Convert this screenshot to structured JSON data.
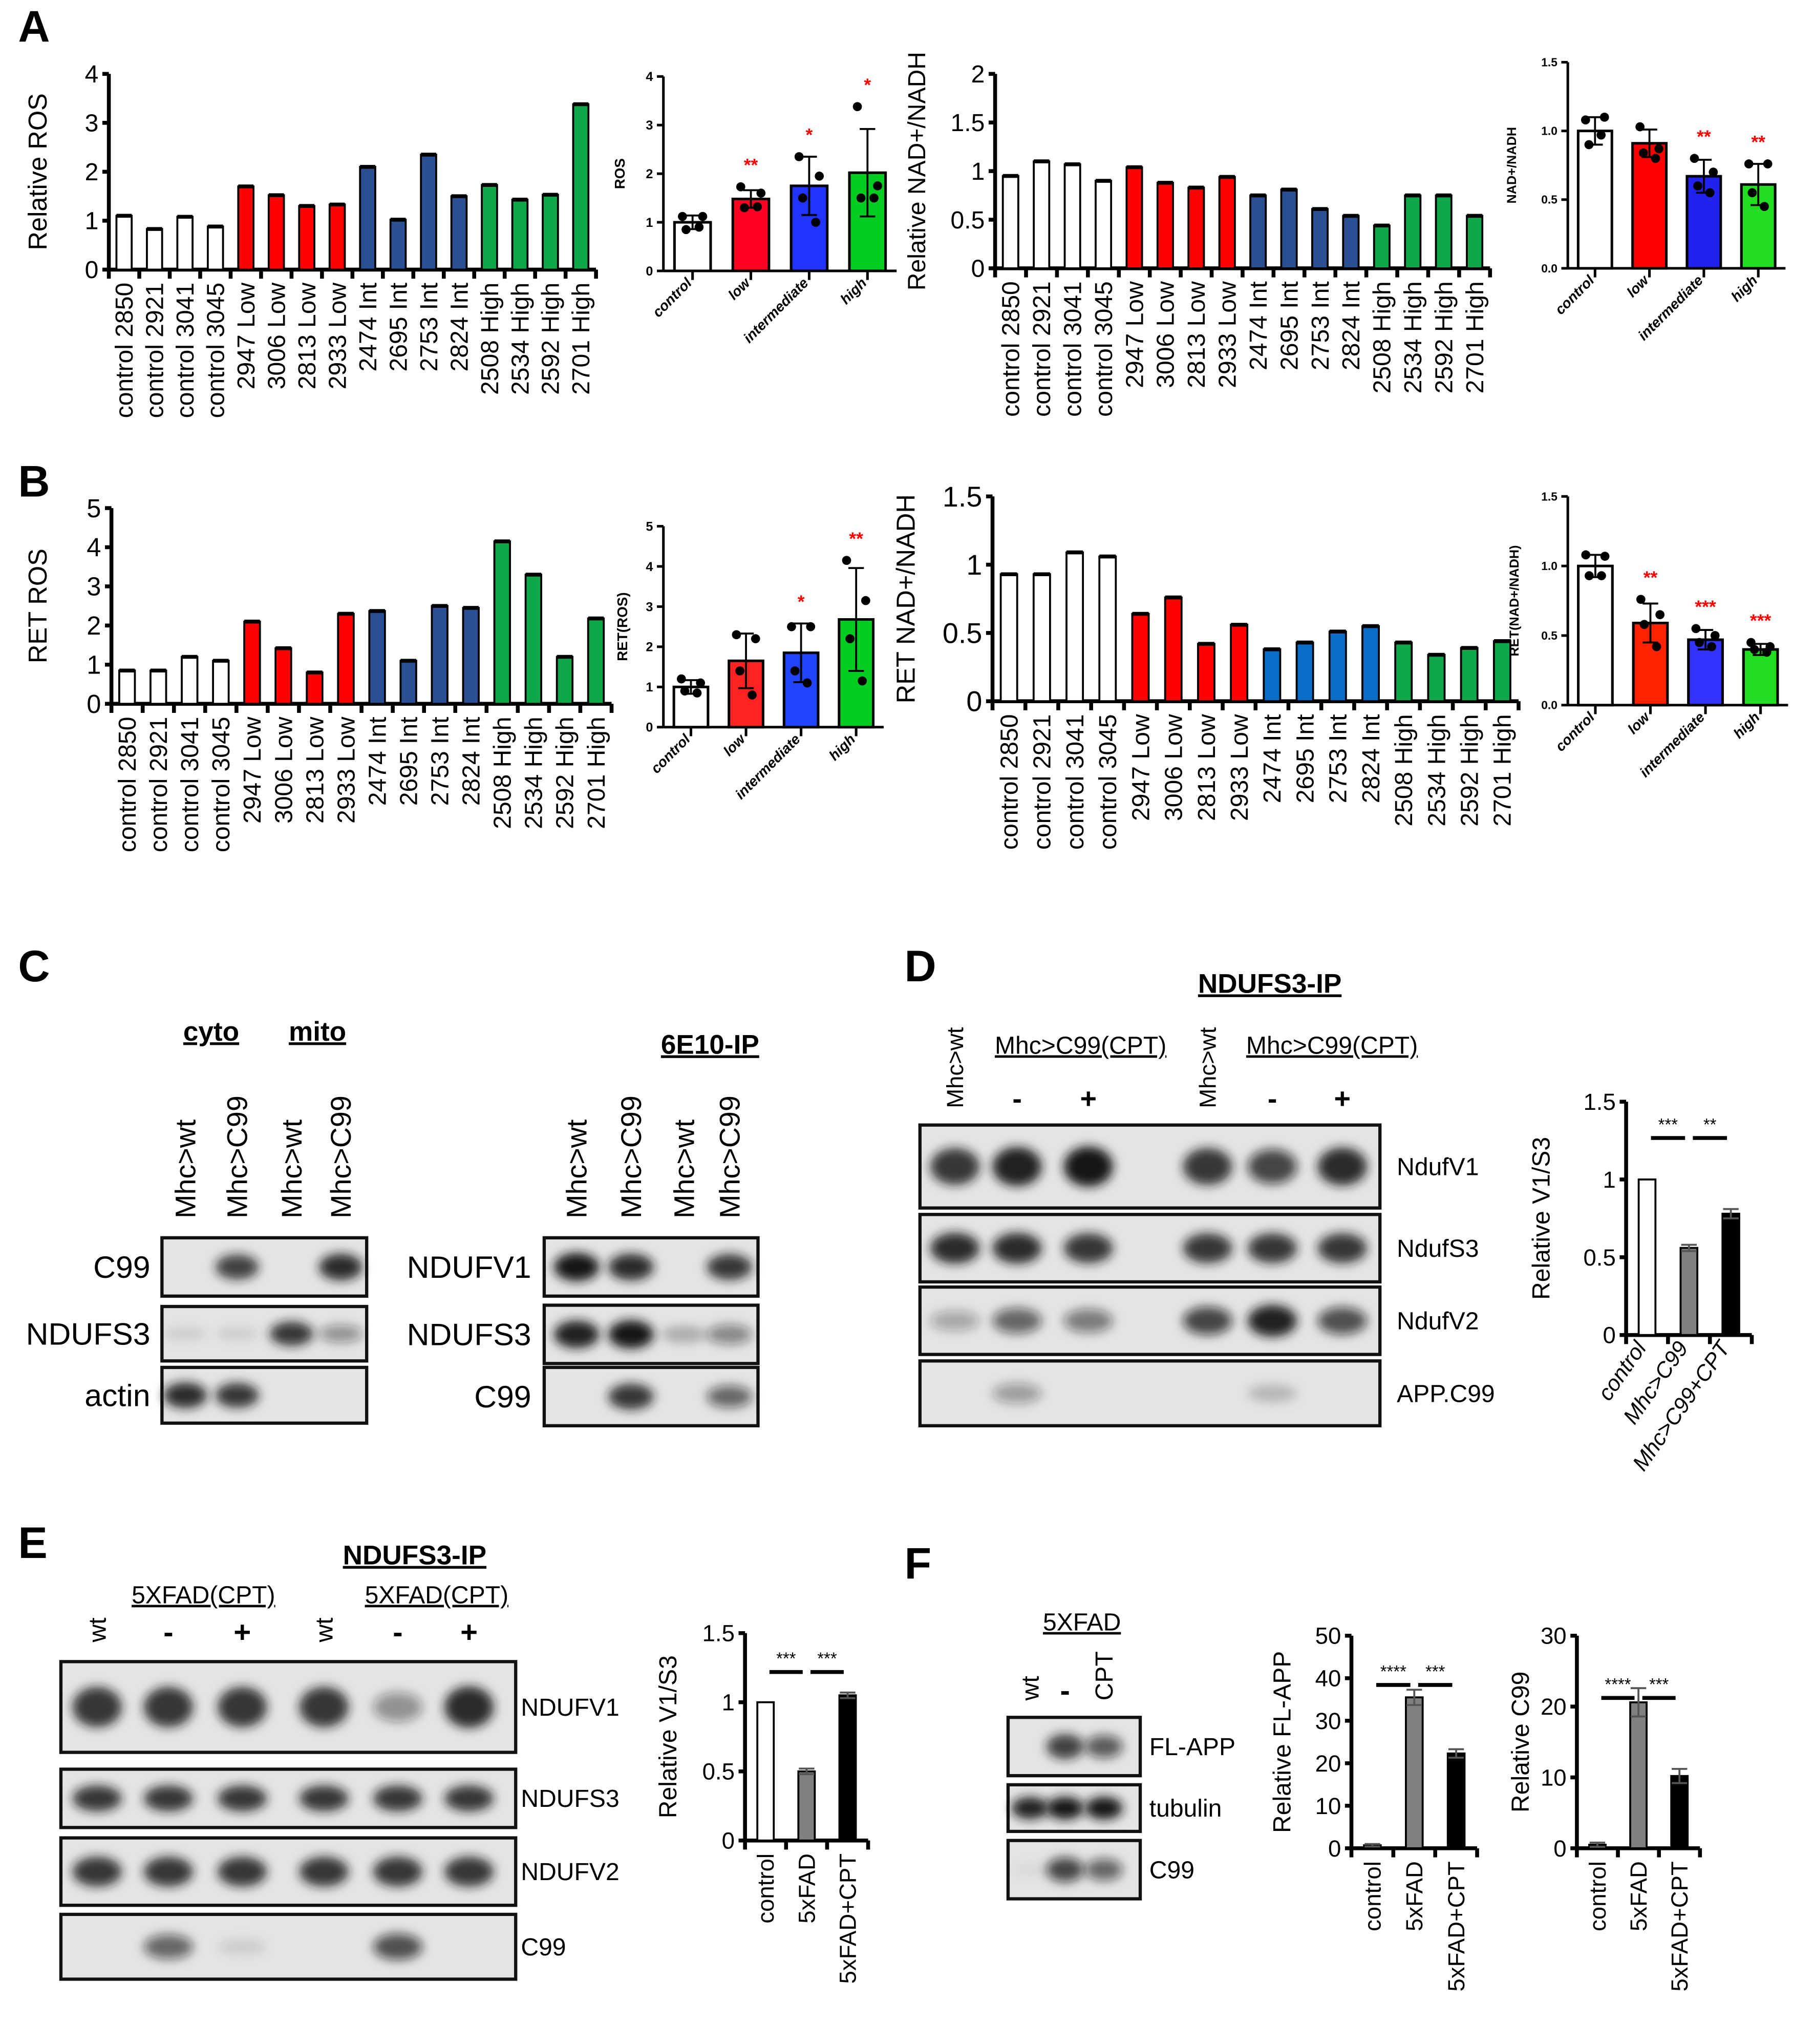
{
  "panels": {
    "A": "A",
    "B": "B",
    "C": "C",
    "D": "D",
    "E": "E",
    "F": "F"
  },
  "colors": {
    "control": "#ffffff",
    "low": "#ff0000",
    "intermediate": "#2b4f93",
    "intermediate_light": "#0a6ec8",
    "high": "#10a64a",
    "star": "#ff0000",
    "bar_gray": "#808080",
    "bar_black": "#000000"
  },
  "chart_data": [
    {
      "id": "A1",
      "type": "bar",
      "title": "",
      "xlabel": "",
      "ylabel": "Relative ROS",
      "ylim": [
        0,
        4
      ],
      "yticks": [
        "0",
        "1",
        "2",
        "3",
        "4"
      ],
      "categories": [
        "control 2850",
        "control 2921",
        "control 3041",
        "control 3045",
        "2947 Low",
        "3006 Low",
        "2813 Low",
        "2933 Low",
        "2474 Int",
        "2695 Int",
        "2753 Int",
        "2824 Int",
        "2508 High",
        "2534 High",
        "2592 High",
        "2701 High"
      ],
      "values": [
        1.1,
        0.83,
        1.08,
        0.88,
        1.7,
        1.52,
        1.3,
        1.33,
        2.1,
        1.02,
        2.35,
        1.5,
        1.73,
        1.43,
        1.53,
        3.38
      ],
      "colors": [
        "#ffffff",
        "#ffffff",
        "#ffffff",
        "#ffffff",
        "#ff0000",
        "#ff0000",
        "#ff0000",
        "#ff0000",
        "#2b4f93",
        "#2b4f93",
        "#2b4f93",
        "#2b4f93",
        "#10a64a",
        "#10a64a",
        "#10a64a",
        "#10a64a"
      ],
      "grid": false
    },
    {
      "id": "A2",
      "type": "bar",
      "ylabel": "ROS",
      "ylim": [
        0,
        4
      ],
      "yticks": [
        "0",
        "1",
        "2",
        "3",
        "4"
      ],
      "categories": [
        "control",
        "low",
        "intermediate",
        "high"
      ],
      "values": [
        1.0,
        1.48,
        1.75,
        2.02
      ],
      "errors": [
        0.14,
        0.18,
        0.6,
        0.9
      ],
      "points": [
        [
          1.12,
          1.12,
          0.85,
          0.9
        ],
        [
          1.73,
          1.6,
          1.3,
          1.32
        ],
        [
          2.35,
          1.95,
          1.5,
          1.0
        ],
        [
          3.38,
          1.75,
          1.5,
          1.5
        ]
      ],
      "stars": [
        "",
        "**",
        "*",
        "*"
      ],
      "colors": [
        "#ffffff",
        "#ff0022",
        "#2233ff",
        "#00cc22"
      ],
      "grid": false
    },
    {
      "id": "A3",
      "type": "bar",
      "ylabel": "Relative NAD+/NADH",
      "ylim": [
        0,
        2
      ],
      "yticks": [
        "0",
        "0.5",
        "1",
        "1.5",
        "2"
      ],
      "categories": [
        "control 2850",
        "control 2921",
        "control 3041",
        "control 3045",
        "2947 Low",
        "3006 Low",
        "2813 Low",
        "2933 Low",
        "2474 Int",
        "2695 Int",
        "2753 Int",
        "2824 Int",
        "2508 High",
        "2534 High",
        "2592 High",
        "2701 High"
      ],
      "values": [
        0.95,
        1.1,
        1.07,
        0.9,
        1.04,
        0.88,
        0.83,
        0.94,
        0.75,
        0.81,
        0.61,
        0.54,
        0.44,
        0.75,
        0.75,
        0.54
      ],
      "colors": [
        "#ffffff",
        "#ffffff",
        "#ffffff",
        "#ffffff",
        "#ff0000",
        "#ff0000",
        "#ff0000",
        "#ff0000",
        "#2b4f93",
        "#2b4f93",
        "#2b4f93",
        "#2b4f93",
        "#10a64a",
        "#10a64a",
        "#10a64a",
        "#10a64a"
      ],
      "grid": false
    },
    {
      "id": "A4",
      "type": "bar",
      "ylabel": "NAD+/NADH",
      "ylim": [
        0,
        1.5
      ],
      "yticks": [
        "0.0",
        "0.5",
        "1.0",
        "1.5"
      ],
      "categories": [
        "control",
        "low",
        "intermediate",
        "high"
      ],
      "values": [
        1.0,
        0.91,
        0.67,
        0.61
      ],
      "errors": [
        0.1,
        0.1,
        0.12,
        0.15
      ],
      "points": [
        [
          1.08,
          1.1,
          0.9,
          0.97
        ],
        [
          1.03,
          0.87,
          0.84,
          0.8
        ],
        [
          0.8,
          0.7,
          0.6,
          0.55
        ],
        [
          0.76,
          0.76,
          0.55,
          0.45
        ]
      ],
      "stars": [
        "",
        "",
        "**",
        "**"
      ],
      "colors": [
        "#ffffff",
        "#ff0000",
        "#2222ee",
        "#22dd22"
      ],
      "grid": false
    },
    {
      "id": "B1",
      "type": "bar",
      "ylabel": "RET ROS",
      "ylim": [
        0,
        5
      ],
      "yticks": [
        "0",
        "1",
        "2",
        "3",
        "4",
        "5"
      ],
      "categories": [
        "control 2850",
        "control 2921",
        "control 3041",
        "control 3045",
        "2947 Low",
        "3006 Low",
        "2813 Low",
        "2933 Low",
        "2474 Int",
        "2695 Int",
        "2753 Int",
        "2824 Int",
        "2508 High",
        "2534 High",
        "2592 High",
        "2701 High"
      ],
      "values": [
        0.85,
        0.85,
        1.2,
        1.1,
        2.1,
        1.42,
        0.8,
        2.3,
        2.37,
        1.1,
        2.5,
        2.45,
        4.15,
        3.3,
        1.2,
        2.18
      ],
      "colors": [
        "#ffffff",
        "#ffffff",
        "#ffffff",
        "#ffffff",
        "#ff0000",
        "#ff0000",
        "#ff0000",
        "#ff0000",
        "#2b4f93",
        "#2b4f93",
        "#2b4f93",
        "#2b4f93",
        "#10a64a",
        "#10a64a",
        "#10a64a",
        "#10a64a"
      ],
      "grid": false
    },
    {
      "id": "B2",
      "type": "bar",
      "ylabel": "RET(ROS)",
      "ylim": [
        0,
        5
      ],
      "yticks": [
        "0",
        "1",
        "2",
        "3",
        "4",
        "5"
      ],
      "categories": [
        "control",
        "low",
        "intermediate",
        "high"
      ],
      "values": [
        1.0,
        1.65,
        1.85,
        2.68
      ],
      "errors": [
        0.17,
        0.68,
        0.73,
        1.28
      ],
      "points": [
        [
          1.2,
          1.1,
          0.9,
          0.85
        ],
        [
          2.3,
          2.2,
          1.4,
          0.8
        ],
        [
          2.5,
          2.5,
          1.4,
          1.1
        ],
        [
          4.15,
          3.15,
          2.2,
          1.15
        ]
      ],
      "stars": [
        "",
        "",
        "*",
        "**"
      ],
      "colors": [
        "#ffffff",
        "#ff2222",
        "#2244ff",
        "#00cc22"
      ],
      "grid": false
    },
    {
      "id": "B3",
      "type": "bar",
      "ylabel": "RET NAD+/NADH",
      "ylim": [
        0,
        1.5
      ],
      "yticks": [
        "0",
        "0.5",
        "1",
        "1.5"
      ],
      "categories": [
        "control 2850",
        "control 2921",
        "control 3041",
        "control 3045",
        "2947 Low",
        "3006 Low",
        "2813 Low",
        "2933 Low",
        "2474 Int",
        "2695 Int",
        "2753 Int",
        "2824 Int",
        "2508 High",
        "2534 High",
        "2592 High",
        "2701 High"
      ],
      "values": [
        0.93,
        0.93,
        1.09,
        1.06,
        0.64,
        0.76,
        0.42,
        0.56,
        0.38,
        0.43,
        0.51,
        0.55,
        0.43,
        0.34,
        0.39,
        0.44
      ],
      "colors": [
        "#ffffff",
        "#ffffff",
        "#ffffff",
        "#ffffff",
        "#ff0000",
        "#ff0000",
        "#ff0000",
        "#ff0000",
        "#0a6ec8",
        "#0a6ec8",
        "#0a6ec8",
        "#0a6ec8",
        "#10a64a",
        "#10a64a",
        "#10a64a",
        "#10a64a"
      ],
      "grid": false
    },
    {
      "id": "B4",
      "type": "bar",
      "ylabel": "RET(NAD+/NADH)",
      "ylim": [
        0,
        1.5
      ],
      "yticks": [
        "0.0",
        "0.5",
        "1.0",
        "1.5"
      ],
      "categories": [
        "control",
        "low",
        "intermediate",
        "high"
      ],
      "values": [
        1.0,
        0.59,
        0.47,
        0.4
      ],
      "errors": [
        0.08,
        0.14,
        0.07,
        0.04
      ],
      "points": [
        [
          1.08,
          1.07,
          0.93,
          0.93
        ],
        [
          0.76,
          0.65,
          0.58,
          0.42
        ],
        [
          0.55,
          0.5,
          0.45,
          0.42
        ],
        [
          0.45,
          0.42,
          0.4,
          0.38
        ]
      ],
      "stars": [
        "",
        "**",
        "***",
        "***"
      ],
      "colors": [
        "#ffffff",
        "#ff2200",
        "#3333ff",
        "#22dd22"
      ],
      "grid": false
    },
    {
      "id": "D",
      "type": "bar",
      "ylabel": "Relative V1/S3",
      "ylim": [
        0,
        1.5
      ],
      "yticks": [
        "0",
        "0.5",
        "1",
        "1.5"
      ],
      "categories": [
        "control",
        "Mhc>C99",
        "Mhc>C99+CPT"
      ],
      "values": [
        1.0,
        0.56,
        0.78
      ],
      "errors": [
        0,
        0.02,
        0.03
      ],
      "colors": [
        "#ffffff",
        "#808080",
        "#000000"
      ],
      "comparisons": [
        {
          "from": 0,
          "to": 1,
          "label": "***"
        },
        {
          "from": 1,
          "to": 2,
          "label": "**"
        }
      ],
      "grid": false
    },
    {
      "id": "E",
      "type": "bar",
      "ylabel": "Relative V1/S3",
      "ylim": [
        0,
        1.5
      ],
      "yticks": [
        "0",
        "0.5",
        "1",
        "1.5"
      ],
      "categories": [
        "control",
        "5xFAD",
        "5xFAD+CPT"
      ],
      "values": [
        1.0,
        0.5,
        1.05
      ],
      "errors": [
        0,
        0.02,
        0.02
      ],
      "colors": [
        "#ffffff",
        "#808080",
        "#000000"
      ],
      "comparisons": [
        {
          "from": 0,
          "to": 1,
          "label": "***"
        },
        {
          "from": 1,
          "to": 2,
          "label": "***"
        }
      ],
      "grid": false
    },
    {
      "id": "F1",
      "type": "bar",
      "ylabel": "Relative FL-APP",
      "ylim": [
        0,
        50
      ],
      "yticks": [
        "0",
        "10",
        "20",
        "30",
        "40",
        "50"
      ],
      "categories": [
        "control",
        "5xFAD",
        "5xFAD+CPT"
      ],
      "values": [
        0.7,
        35.5,
        22.3
      ],
      "errors": [
        0.3,
        1.8,
        1.0
      ],
      "colors": [
        "#808080",
        "#808080",
        "#000000"
      ],
      "comparisons": [
        {
          "from": 0,
          "to": 1,
          "label": "****"
        },
        {
          "from": 1,
          "to": 2,
          "label": "***"
        }
      ],
      "grid": false
    },
    {
      "id": "F2",
      "type": "bar",
      "ylabel": "Relative C99",
      "ylim": [
        0,
        30
      ],
      "yticks": [
        "0",
        "10",
        "20",
        "30"
      ],
      "categories": [
        "control",
        "5xFAD",
        "5xFAD+CPT"
      ],
      "values": [
        0.5,
        20.6,
        10.2
      ],
      "errors": [
        0.3,
        2.0,
        1.0
      ],
      "colors": [
        "#000000",
        "#808080",
        "#000000"
      ],
      "comparisons": [
        {
          "from": 0,
          "to": 1,
          "label": "****"
        },
        {
          "from": 1,
          "to": 2,
          "label": "***"
        }
      ],
      "grid": false
    }
  ],
  "blots": {
    "C_left": {
      "groups": [
        "cyto",
        "mito"
      ],
      "lanes": [
        "Mhc>wt",
        "Mhc>C99",
        "Mhc>wt",
        "Mhc>C99"
      ],
      "rows": [
        {
          "label": "C99",
          "bands": [
            0,
            0.8,
            0,
            0.9
          ]
        },
        {
          "label": "NDUFS3",
          "bands": [
            0.1,
            0.1,
            0.85,
            0.4
          ]
        },
        {
          "label": "actin",
          "bands": [
            0.9,
            0.85,
            0,
            0
          ]
        }
      ]
    },
    "C_right": {
      "header": "6E10-IP",
      "lanes": [
        "Mhc>wt",
        "Mhc>C99",
        "Mhc>wt",
        "Mhc>C99"
      ],
      "rows": [
        {
          "label": "NDUFV1",
          "bands": [
            1,
            0.9,
            0,
            0.85
          ]
        },
        {
          "label": "NDUFS3",
          "bands": [
            0.95,
            1,
            0.25,
            0.45
          ]
        },
        {
          "label": "C99",
          "bands": [
            0,
            0.85,
            0,
            0.6
          ]
        }
      ]
    },
    "D": {
      "header": "NDUFS3-IP",
      "groups": [
        "Mhc>C99(CPT)",
        "Mhc>C99(CPT)"
      ],
      "lanes": [
        "Mhc>wt",
        "-",
        "+",
        "Mhc>wt",
        "-",
        "+"
      ],
      "rows": [
        {
          "label": "NdufV1",
          "bands": [
            0.85,
            0.95,
            1,
            0.85,
            0.75,
            0.9
          ]
        },
        {
          "label": "NdufS3",
          "bands": [
            0.9,
            0.9,
            0.85,
            0.85,
            0.85,
            0.85
          ]
        },
        {
          "label": "NdufV2",
          "bands": [
            0.3,
            0.6,
            0.5,
            0.75,
            0.95,
            0.7
          ]
        },
        {
          "label": "APP.C99",
          "bands": [
            0,
            0.35,
            0,
            0,
            0.2,
            0
          ]
        }
      ]
    },
    "E": {
      "header": "NDUFS3-IP",
      "groups": [
        "5XFAD(CPT)",
        "5XFAD(CPT)"
      ],
      "lanes": [
        "wt",
        "-",
        "+",
        "wt",
        "-",
        "+"
      ],
      "rows": [
        {
          "label": "NDUFV1",
          "bands": [
            0.85,
            0.85,
            0.85,
            0.85,
            0.4,
            0.9
          ]
        },
        {
          "label": "NDUFS3",
          "bands": [
            0.85,
            0.85,
            0.85,
            0.85,
            0.85,
            0.85
          ]
        },
        {
          "label": "NDUFV2",
          "bands": [
            0.85,
            0.85,
            0.85,
            0.85,
            0.85,
            0.85
          ]
        },
        {
          "label": "C99",
          "bands": [
            0,
            0.6,
            0.1,
            0,
            0.7,
            0
          ]
        }
      ]
    },
    "F": {
      "groups": [
        "5XFAD"
      ],
      "lanes": [
        "wt",
        "-",
        "CPT"
      ],
      "rows": [
        {
          "label": "FL-APP",
          "bands": [
            0,
            0.8,
            0.65
          ]
        },
        {
          "label": "tubulin",
          "bands": [
            0.95,
            1,
            1
          ]
        },
        {
          "label": "C99",
          "bands": [
            0.05,
            0.75,
            0.6
          ]
        }
      ]
    }
  }
}
